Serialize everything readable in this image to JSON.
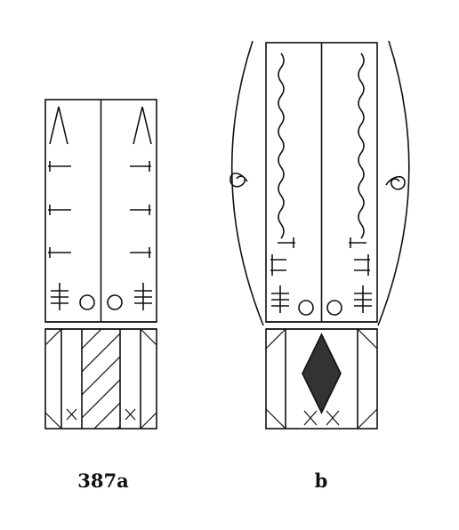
{
  "figure": {
    "panel_a": {
      "label": "387a"
    },
    "panel_b": {
      "label": "b"
    }
  },
  "colors": {
    "ink": "#111111",
    "fill_dark": "#333333",
    "background": "#ffffff"
  }
}
